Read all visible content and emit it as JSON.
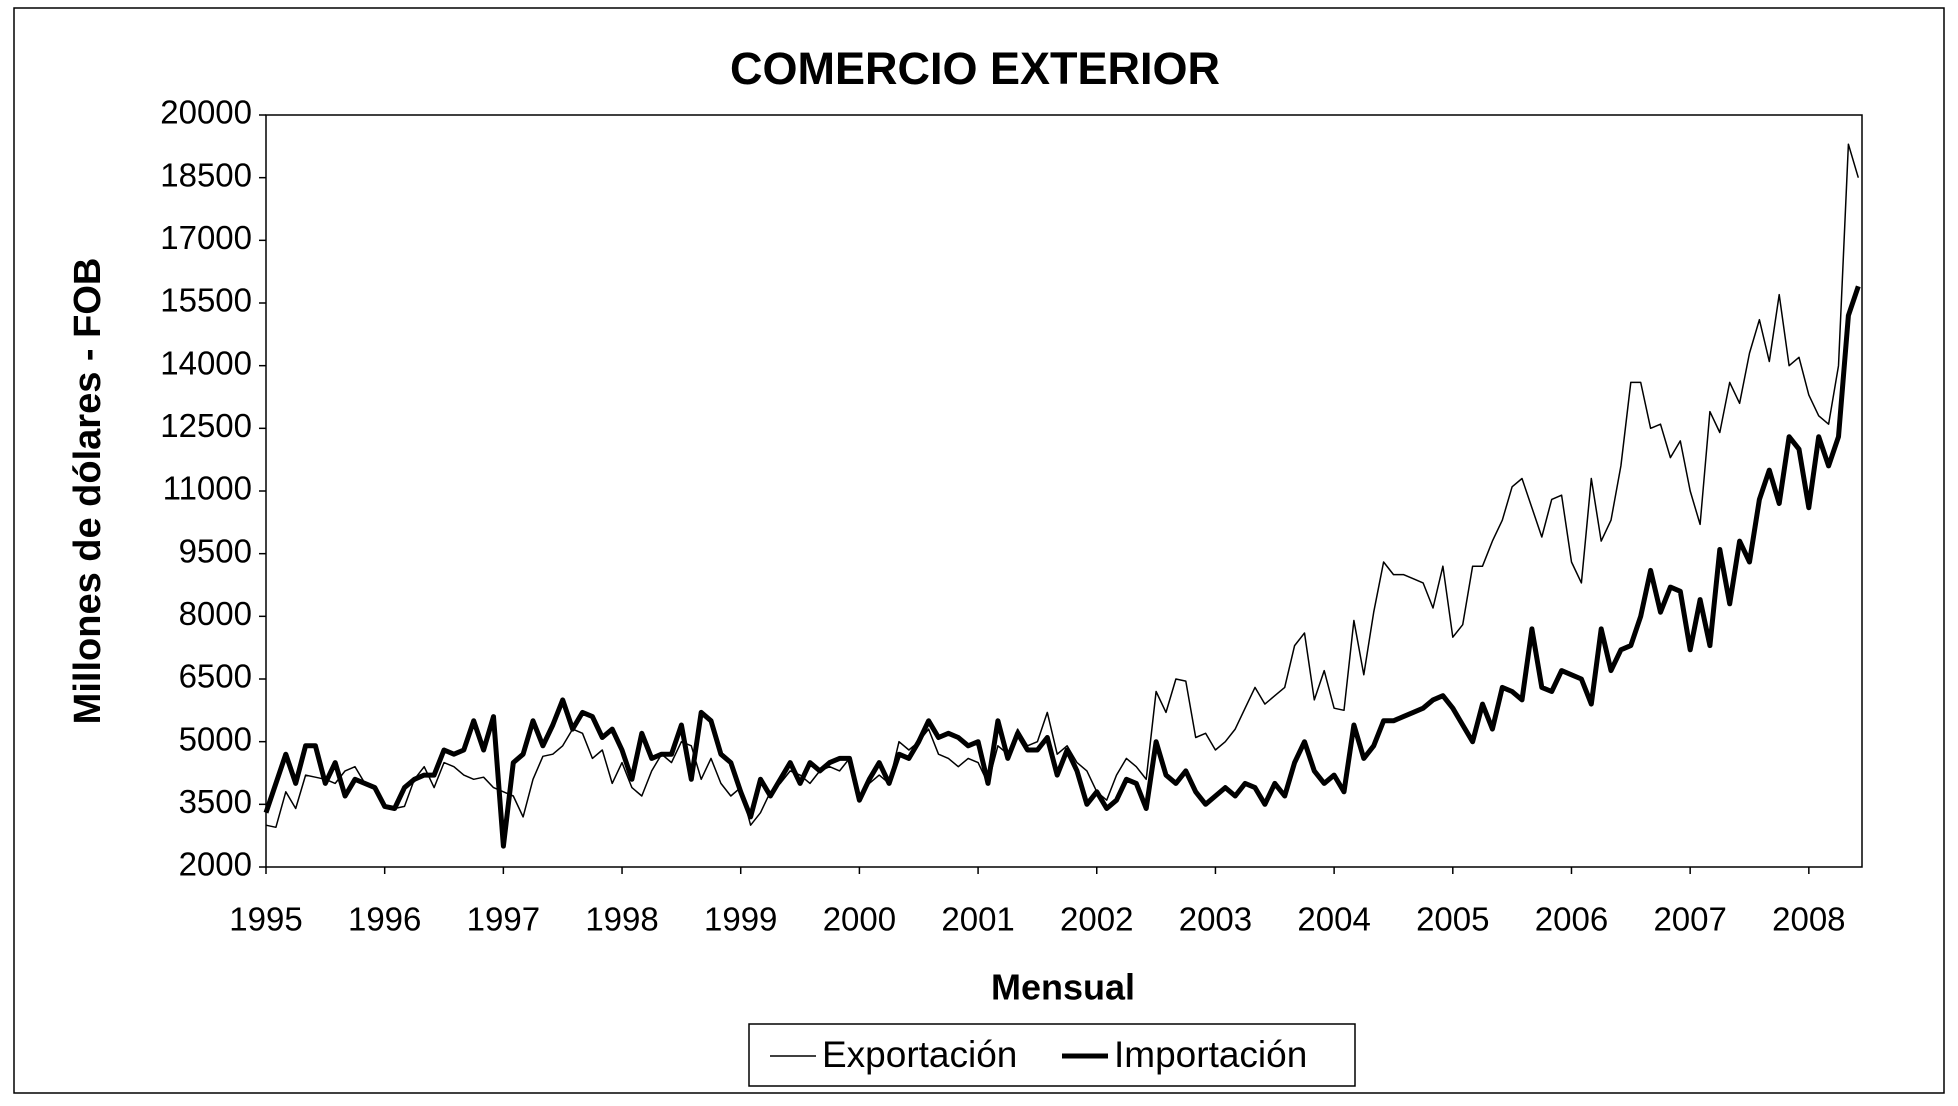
{
  "chart_data": {
    "type": "line",
    "title": "COMERCIO EXTERIOR",
    "y_label": "Millones de dólares - FOB",
    "x_label": "Mensual",
    "categories": [
      "1995",
      null,
      null,
      null,
      null,
      null,
      null,
      null,
      null,
      null,
      null,
      null,
      "1996",
      null,
      null,
      null,
      null,
      null,
      null,
      null,
      null,
      null,
      null,
      null,
      "1997",
      null,
      null,
      null,
      null,
      null,
      null,
      null,
      null,
      null,
      null,
      null,
      "1998",
      null,
      null,
      null,
      null,
      null,
      null,
      null,
      null,
      null,
      null,
      null,
      "1999",
      null,
      null,
      null,
      null,
      null,
      null,
      null,
      null,
      null,
      null,
      null,
      "2000",
      null,
      null,
      null,
      null,
      null,
      null,
      null,
      null,
      null,
      null,
      null,
      "2001",
      null,
      null,
      null,
      null,
      null,
      null,
      null,
      null,
      null,
      null,
      null,
      "2002",
      null,
      null,
      null,
      null,
      null,
      null,
      null,
      null,
      null,
      null,
      null,
      "2003",
      null,
      null,
      null,
      null,
      null,
      null,
      null,
      null,
      null,
      null,
      null,
      "2004",
      null,
      null,
      null,
      null,
      null,
      null,
      null,
      null,
      null,
      null,
      null,
      "2005",
      null,
      null,
      null,
      null,
      null,
      null,
      null,
      null,
      null,
      null,
      null,
      "2006",
      null,
      null,
      null,
      null,
      null,
      null,
      null,
      null,
      null,
      null,
      null,
      "2007",
      null,
      null,
      null,
      null,
      null,
      null,
      null,
      null,
      null,
      null,
      null,
      "2008",
      null,
      null,
      null,
      null,
      null
    ],
    "series": [
      {
        "name": "Exportación",
        "color": "#000000",
        "line_width": 1.5,
        "values": [
          3000,
          2950,
          3800,
          3400,
          4200,
          4150,
          4100,
          4000,
          4300,
          4400,
          4000,
          3900,
          3450,
          3400,
          3450,
          4100,
          4400,
          3900,
          4500,
          4400,
          4200,
          4100,
          4150,
          3900,
          3800,
          3700,
          3200,
          4100,
          4650,
          4700,
          4900,
          5300,
          5200,
          4600,
          4800,
          4000,
          4500,
          3900,
          3700,
          4300,
          4700,
          4500,
          5000,
          4900,
          4100,
          4600,
          4000,
          3700,
          3900,
          3000,
          3300,
          3800,
          4000,
          4300,
          4200,
          4000,
          4300,
          4400,
          4300,
          4600,
          3600,
          4000,
          4200,
          4000,
          5000,
          4800,
          5000,
          5300,
          4700,
          4600,
          4400,
          4600,
          4500,
          4000,
          4900,
          4700,
          5300,
          4900,
          5000,
          5700,
          4700,
          4900,
          4500,
          4300,
          3800,
          3600,
          4200,
          4600,
          4400,
          4100,
          6200,
          5700,
          6500,
          6450,
          5100,
          5200,
          4800,
          5000,
          5300,
          5800,
          6300,
          5900,
          6100,
          6300,
          7300,
          7600,
          6000,
          6700,
          5800,
          5750,
          7900,
          6600,
          8100,
          9300,
          9000,
          9000,
          8900,
          8800,
          8200,
          9200,
          7500,
          7800,
          9200,
          9200,
          9800,
          10300,
          11100,
          11300,
          10600,
          9900,
          10800,
          10900,
          9300,
          8800,
          11300,
          9800,
          10300,
          11600,
          13600,
          13600,
          12500,
          12600,
          11800,
          12200,
          11000,
          10200,
          12900,
          12400,
          13600,
          13100,
          14300,
          15100,
          14100,
          15700,
          14000,
          14200,
          13300,
          12800,
          12600,
          14000,
          19300,
          18500
        ]
      },
      {
        "name": "Importación",
        "color": "#000000",
        "line_width": 5,
        "values": [
          3300,
          4000,
          4700,
          4000,
          4900,
          4900,
          4000,
          4500,
          3700,
          4100,
          4000,
          3900,
          3450,
          3400,
          3900,
          4100,
          4200,
          4200,
          4800,
          4700,
          4800,
          5500,
          4800,
          5600,
          2500,
          4500,
          4700,
          5500,
          4900,
          5400,
          6000,
          5300,
          5700,
          5600,
          5100,
          5300,
          4800,
          4100,
          5200,
          4600,
          4700,
          4700,
          5400,
          4100,
          5700,
          5500,
          4700,
          4500,
          3800,
          3200,
          4100,
          3700,
          4100,
          4500,
          4000,
          4500,
          4300,
          4500,
          4600,
          4600,
          3600,
          4100,
          4500,
          4000,
          4700,
          4600,
          5000,
          5500,
          5100,
          5200,
          5100,
          4900,
          5000,
          4000,
          5500,
          4600,
          5200,
          4800,
          4800,
          5100,
          4200,
          4800,
          4300,
          3500,
          3800,
          3400,
          3600,
          4100,
          4000,
          3400,
          5000,
          4200,
          4000,
          4300,
          3800,
          3500,
          3700,
          3900,
          3700,
          4000,
          3900,
          3500,
          4000,
          3700,
          4500,
          5000,
          4300,
          4000,
          4200,
          3800,
          5400,
          4600,
          4900,
          5500,
          5500,
          5600,
          5700,
          5800,
          6000,
          6100,
          5800,
          5400,
          5000,
          5900,
          5300,
          6300,
          6200,
          6000,
          7700,
          6300,
          6200,
          6700,
          6600,
          6500,
          5900,
          7700,
          6700,
          7200,
          7300,
          8000,
          9100,
          8100,
          8700,
          8600,
          7200,
          8400,
          7300,
          9600,
          8300,
          9800,
          9300,
          10800,
          11500,
          10700,
          12300,
          12000,
          10600,
          12300,
          11600,
          12300,
          15200,
          15900
        ]
      }
    ],
    "ylim": [
      2000,
      20000
    ],
    "yticks": [
      2000,
      3500,
      5000,
      6500,
      8000,
      9500,
      11000,
      12500,
      14000,
      15500,
      17000,
      18500,
      20000
    ],
    "grid": false,
    "legend": "bottom"
  }
}
